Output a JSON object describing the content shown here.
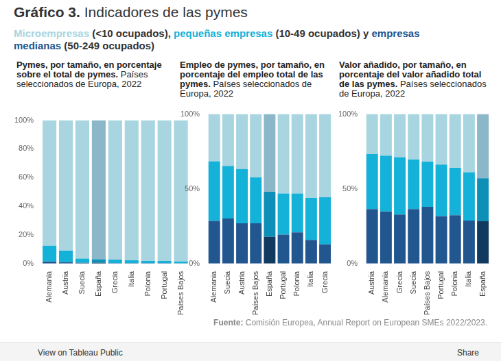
{
  "title": {
    "bold": "Gráfico 3.",
    "text": "Indicadores de las pymes"
  },
  "subtitle_parts": [
    " (<10 ocupados), ",
    " (10-49 ocupados) y ",
    " (50-249 ocupados)"
  ],
  "source": {
    "label": "Fuente:",
    "text": "Comisión Europea, Annual Report on European SMEs 2022/2023."
  },
  "footer": {
    "left": "View on Tableau Public",
    "right": "Share"
  },
  "chart_data": [
    {
      "type": "bar",
      "title": "Pymes, por tamaño, en porcentaje sobre el total de pymes.",
      "subtitle": "Países seleccionados de Europa, 2022",
      "categories": [
        "Alemania",
        "Austria",
        "Suecia",
        "España",
        "Grecia",
        "Italia",
        "Polonia",
        "Portugal",
        "Países Bajos"
      ],
      "series": [
        {
          "name": "empresas medianas",
          "color": "#22568f",
          "colors": [
            "#22568f",
            "#22568f",
            "#22568f",
            "#123a5f",
            "#22568f",
            "#22568f",
            "#22568f",
            "#22568f",
            "#22568f"
          ],
          "values": [
            1.5,
            1,
            0.5,
            0.5,
            0.3,
            0.3,
            0.3,
            0.3,
            0.2
          ]
        },
        {
          "name": "pequeñas empresas",
          "color": "#14b1d8",
          "colors": [
            "#14b1d8",
            "#14b1d8",
            "#14b1d8",
            "#0d8fb8",
            "#14b1d8",
            "#14b1d8",
            "#14b1d8",
            "#14b1d8",
            "#14b1d8"
          ],
          "values": [
            11,
            8,
            3,
            2.5,
            2.5,
            2,
            1.5,
            1.5,
            1.3
          ]
        },
        {
          "name": "Microempresas",
          "color": "#a8d5e0",
          "colors": [
            "#a8d5e0",
            "#a8d5e0",
            "#a8d5e0",
            "#8bb7c9",
            "#a8d5e0",
            "#a8d5e0",
            "#a8d5e0",
            "#a8d5e0",
            "#a8d5e0"
          ],
          "values": [
            87.5,
            91,
            96.5,
            97,
            97.2,
            97.7,
            98.2,
            98.2,
            98.5
          ]
        }
      ],
      "stacked": true,
      "grid": false,
      "ylim": [
        0,
        100
      ],
      "yticks": [
        {
          "value": 0,
          "label": "0%"
        },
        {
          "value": 20,
          "label": "20%"
        },
        {
          "value": 40,
          "label": "40%"
        },
        {
          "value": 60,
          "label": "60%"
        },
        {
          "value": 80,
          "label": "80%"
        },
        {
          "value": 100,
          "label": "100%"
        }
      ]
    },
    {
      "type": "bar",
      "title": "Empleo de pymes, por tamaño, en porcentaje del empleo total de las pymes.",
      "subtitle": "Países seleccionados de Europa, 2022",
      "categories": [
        "Alemania",
        "Suecia",
        "Austria",
        "Países Bajos",
        "España",
        "Portugal",
        "Polonia",
        "Italia",
        "Grecia"
      ],
      "series": [
        {
          "name": "empresas medianas",
          "color": "#22568f",
          "colors": [
            "#22568f",
            "#22568f",
            "#22568f",
            "#22568f",
            "#123a5f",
            "#22568f",
            "#22568f",
            "#22568f",
            "#22568f"
          ],
          "values": [
            28.6,
            30.1,
            27,
            27,
            17.9,
            19.4,
            20.9,
            15.8,
            12.8
          ]
        },
        {
          "name": "pequeñas empresas",
          "color": "#14b1d8",
          "colors": [
            "#14b1d8",
            "#14b1d8",
            "#14b1d8",
            "#14b1d8",
            "#0d8fb8",
            "#14b1d8",
            "#14b1d8",
            "#14b1d8",
            "#14b1d8"
          ],
          "values": [
            39.8,
            35.2,
            36.3,
            30.7,
            30.1,
            27.5,
            26,
            28.1,
            31.6
          ]
        },
        {
          "name": "Microempresas",
          "color": "#a8d5e0",
          "colors": [
            "#a8d5e0",
            "#a8d5e0",
            "#a8d5e0",
            "#a8d5e0",
            "#8bb7c9",
            "#a8d5e0",
            "#a8d5e0",
            "#a8d5e0",
            "#a8d5e0"
          ],
          "values": [
            31.6,
            34.7,
            36.7,
            42.3,
            52,
            53.1,
            53.1,
            56.1,
            55.6
          ]
        }
      ],
      "stacked": true,
      "grid": false,
      "ylim": [
        0,
        100
      ],
      "yticks": [
        {
          "value": 0,
          "label": "0%"
        },
        {
          "value": 50,
          "label": "50%"
        },
        {
          "value": 100,
          "label": "100%"
        }
      ]
    },
    {
      "type": "bar",
      "title": "Valor añadido, por tamaño, en porcentaje del valor añadido total de las pymes.",
      "subtitle": "Países seleccionados de Europa, 2022",
      "categories": [
        "Austria",
        "Alemania",
        "Grecia",
        "Suecia",
        "Países Bajos",
        "Portugal",
        "Polonia",
        "Italia",
        "España"
      ],
      "series": [
        {
          "name": "empresas medianas",
          "color": "#22568f",
          "colors": [
            "#22568f",
            "#22568f",
            "#22568f",
            "#22568f",
            "#22568f",
            "#22568f",
            "#22568f",
            "#22568f",
            "#123a5f"
          ],
          "values": [
            36.4,
            34.8,
            32.8,
            36.4,
            37.9,
            31.8,
            32.3,
            28.8,
            28.3
          ]
        },
        {
          "name": "pequeñas empresas",
          "color": "#14b1d8",
          "colors": [
            "#14b1d8",
            "#14b1d8",
            "#14b1d8",
            "#14b1d8",
            "#14b1d8",
            "#14b1d8",
            "#14b1d8",
            "#14b1d8",
            "#0d8fb8"
          ],
          "values": [
            36.8,
            37.4,
            38.4,
            33.3,
            30.3,
            34.4,
            31.8,
            32.3,
            28.8
          ]
        },
        {
          "name": "Microempresas",
          "color": "#a8d5e0",
          "colors": [
            "#a8d5e0",
            "#a8d5e0",
            "#a8d5e0",
            "#a8d5e0",
            "#a8d5e0",
            "#a8d5e0",
            "#a8d5e0",
            "#a8d5e0",
            "#8bb7c9"
          ],
          "values": [
            26.8,
            27.8,
            28.8,
            30.3,
            31.8,
            33.8,
            35.9,
            38.9,
            42.9
          ]
        }
      ],
      "stacked": true,
      "grid": false,
      "ylim": [
        0,
        100
      ],
      "yticks": [
        {
          "value": 0,
          "label": "0%"
        },
        {
          "value": 50,
          "label": "50%"
        },
        {
          "value": 100,
          "label": "100%"
        }
      ]
    }
  ]
}
